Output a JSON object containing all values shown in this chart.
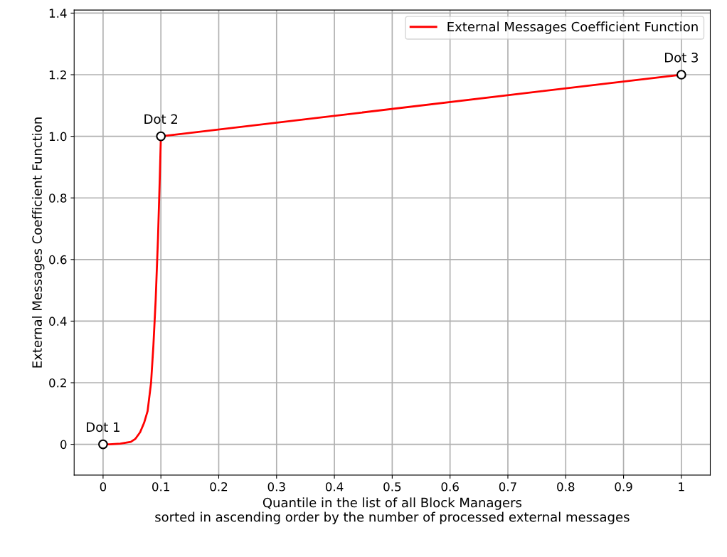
{
  "chart_data": {
    "type": "line",
    "xlabel": "Quantile in the list of all Block Managers\nsorted in ascending order by the number of processed external messages",
    "ylabel": "External Messages Coefficient Function",
    "series": [
      {
        "name": "External Messages Coefficient Function",
        "color": "#ff0000",
        "marker": "none",
        "x": [
          0,
          0.011,
          0.03,
          0.048,
          0.056,
          0.064,
          0.071,
          0.077,
          0.083,
          0.087,
          0.091,
          0.095,
          0.098,
          0.1,
          1
        ],
        "values": [
          0,
          0,
          0.002,
          0.008,
          0.018,
          0.039,
          0.07,
          0.108,
          0.2,
          0.32,
          0.47,
          0.67,
          0.86,
          1.0,
          1.2
        ]
      },
      {
        "color": "#ffffff",
        "type": "scatter",
        "marker": "circle",
        "x": [
          0,
          0.1,
          1
        ],
        "values": [
          0,
          1.0,
          1.2
        ]
      }
    ],
    "annotations": [
      {
        "text": "Dot 1",
        "x": 0,
        "y": 0
      },
      {
        "text": "Dot 2",
        "x": 0.1,
        "y": 1.0
      },
      {
        "text": "Dot 3",
        "x": 1,
        "y": 1.2
      }
    ],
    "xlim": [
      -0.05,
      1.05
    ],
    "ylim": [
      -0.1,
      1.41
    ],
    "xticks": [
      0,
      0.1,
      0.2,
      0.3,
      0.4,
      0.5,
      0.6,
      0.7,
      0.8,
      0.9,
      1
    ],
    "yticks": [
      0,
      0.2,
      0.4,
      0.6,
      0.8,
      {
        "value": 1,
        "label": "1.0"
      },
      1.2,
      1.4
    ],
    "grid": true,
    "legend": "top right"
  }
}
